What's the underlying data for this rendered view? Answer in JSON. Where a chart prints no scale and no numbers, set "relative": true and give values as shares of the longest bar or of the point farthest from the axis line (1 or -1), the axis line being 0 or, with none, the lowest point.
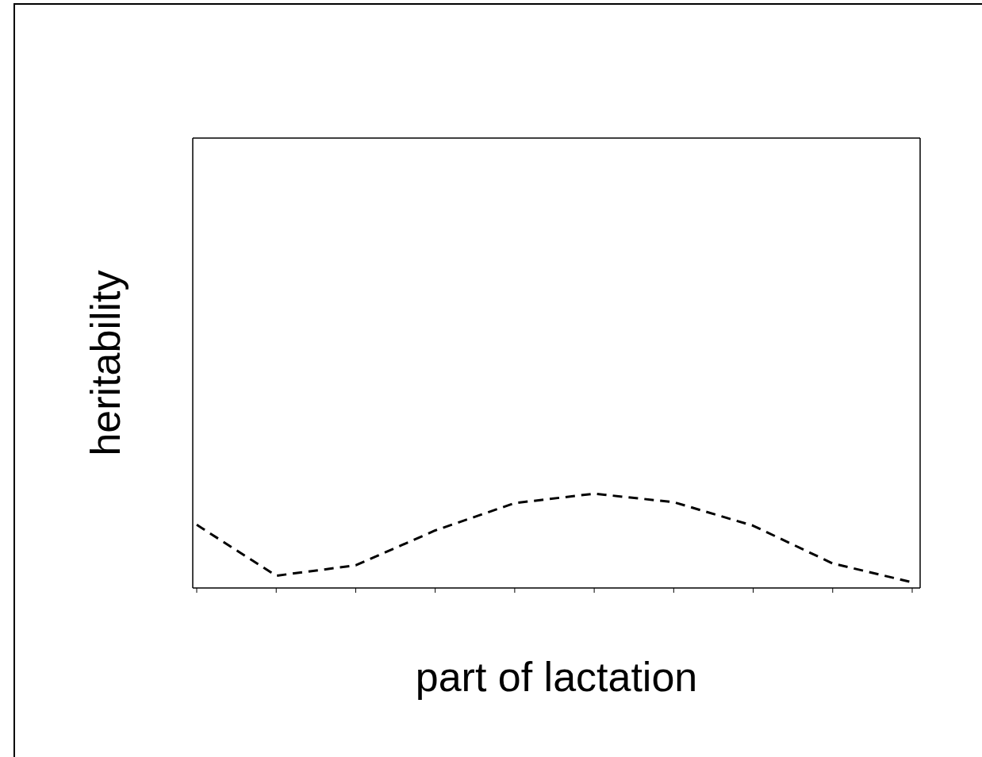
{
  "chart_data": {
    "type": "line",
    "relative": true,
    "xlabel": "part of lactation",
    "ylabel": "heritability",
    "categories": [
      null,
      null,
      null,
      null,
      null,
      null,
      null,
      null,
      null,
      null
    ],
    "series": [
      {
        "color": "#000000",
        "values": [
          0.67,
          0.13,
          0.24,
          0.61,
          0.9,
          1,
          0.91,
          0.66,
          0.26,
          0.06
        ]
      }
    ],
    "line_style": "dashed",
    "marker": "none",
    "grid": false,
    "legend": false
  }
}
